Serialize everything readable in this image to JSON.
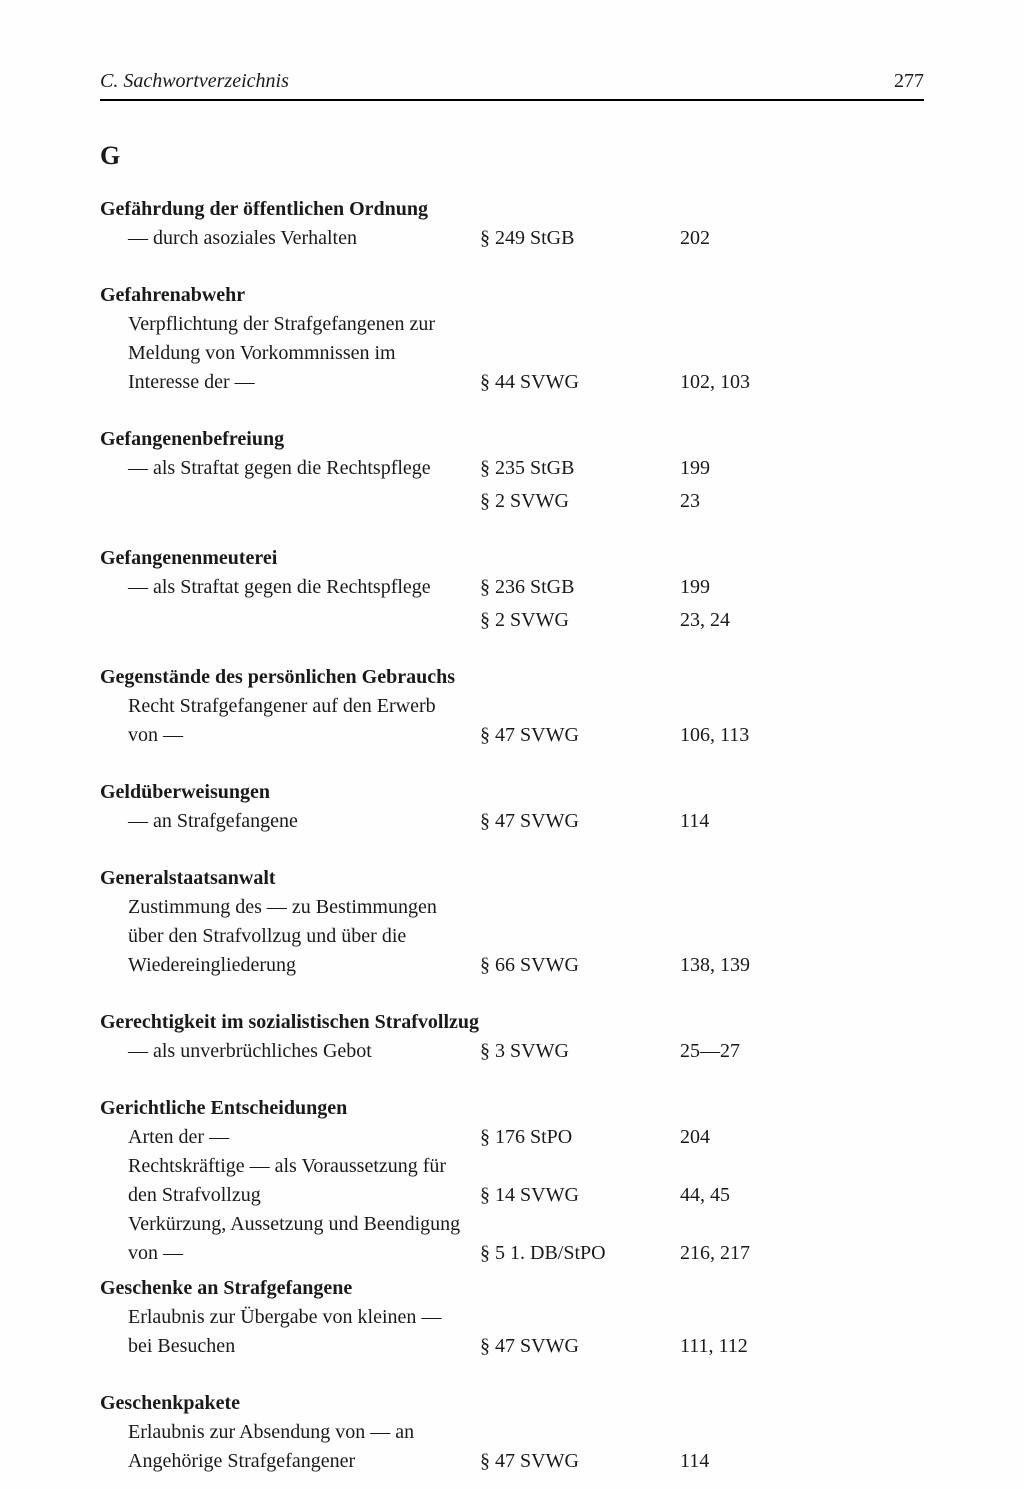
{
  "header": {
    "title": "C. Sachwortverzeichnis",
    "page": "277"
  },
  "section_letter": "G",
  "entries": [
    {
      "term": "Gefährdung der öffentlichen Ordnung",
      "rows": [
        {
          "desc": "— durch asoziales Verhalten",
          "ref": "§ 249 StGB",
          "pages": "202"
        }
      ]
    },
    {
      "term": "Gefahrenabwehr",
      "rows": [
        {
          "desc": "Verpflichtung der Strafgefangenen zur Meldung von Vorkommnissen im Interesse der —",
          "ref": "§ 44 SVWG",
          "pages": "102, 103"
        }
      ]
    },
    {
      "term": "Gefangenenbefreiung",
      "rows": [
        {
          "desc": "— als Straftat gegen die Rechtspflege",
          "ref": "§ 235 StGB",
          "pages": "199"
        },
        {
          "desc": "",
          "ref": "§ 2 SVWG",
          "pages": "23"
        }
      ]
    },
    {
      "term": "Gefangenenmeuterei",
      "rows": [
        {
          "desc": "— als Straftat gegen die Rechtspflege",
          "ref": "§ 236 StGB",
          "pages": "199"
        },
        {
          "desc": "",
          "ref": "§ 2 SVWG",
          "pages": "23, 24"
        }
      ]
    },
    {
      "term": "Gegenstände des persönlichen Gebrauchs",
      "rows": [
        {
          "desc": "Recht Strafgefangener auf den Erwerb von —",
          "ref": "§ 47 SVWG",
          "pages": "106, 113"
        }
      ]
    },
    {
      "term": "Geldüberweisungen",
      "rows": [
        {
          "desc": "— an Strafgefangene",
          "ref": "§ 47 SVWG",
          "pages": "114"
        }
      ]
    },
    {
      "term": "Generalstaatsanwalt",
      "rows": [
        {
          "desc": "Zustimmung des — zu Bestimmungen über den Strafvollzug und über die Wiedereingliederung",
          "ref": "§ 66 SVWG",
          "pages": "138, 139"
        }
      ]
    },
    {
      "term": "Gerechtigkeit im sozialistischen Strafvollzug",
      "rows": [
        {
          "desc": "— als unverbrüchliches Gebot",
          "ref": "§ 3 SVWG",
          "pages": "25—27"
        }
      ]
    },
    {
      "term": "Gerichtliche Entscheidungen",
      "rows": [
        {
          "desc": "Arten der —",
          "ref": "§ 176 StPO",
          "pages": "204"
        },
        {
          "desc": "Rechtskräftige — als Voraussetzung für den Strafvollzug",
          "ref": "§ 14 SVWG",
          "pages": "44, 45"
        },
        {
          "desc": "Verkürzung, Aussetzung und Beendigung von —",
          "ref": "§ 5 1. DB/StPO",
          "pages": "216, 217"
        }
      ],
      "tight": true
    },
    {
      "term": "Geschenke an Strafgefangene",
      "rows": [
        {
          "desc": "Erlaubnis zur Übergabe von kleinen — bei Besuchen",
          "ref": "§ 47 SVWG",
          "pages": "111, 112"
        }
      ]
    },
    {
      "term": "Geschenkpakete",
      "rows": [
        {
          "desc": "Erlaubnis zur Absendung von — an Angehörige Strafgefangener",
          "ref": "§ 47 SVWG",
          "pages": "114"
        }
      ]
    }
  ]
}
